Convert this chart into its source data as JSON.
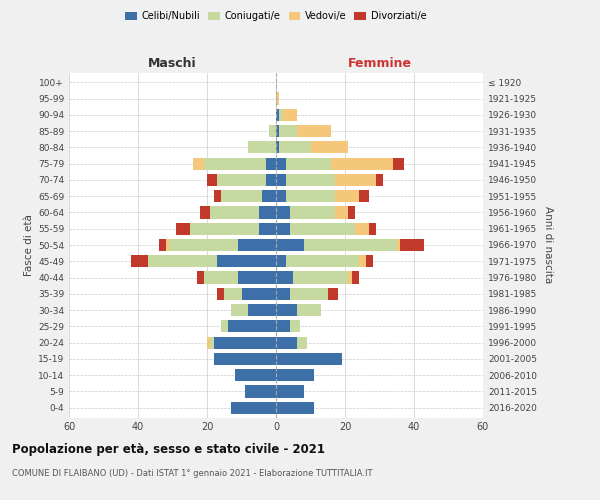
{
  "age_groups": [
    "0-4",
    "5-9",
    "10-14",
    "15-19",
    "20-24",
    "25-29",
    "30-34",
    "35-39",
    "40-44",
    "45-49",
    "50-54",
    "55-59",
    "60-64",
    "65-69",
    "70-74",
    "75-79",
    "80-84",
    "85-89",
    "90-94",
    "95-99",
    "100+"
  ],
  "birth_years": [
    "2016-2020",
    "2011-2015",
    "2006-2010",
    "2001-2005",
    "1996-2000",
    "1991-1995",
    "1986-1990",
    "1981-1985",
    "1976-1980",
    "1971-1975",
    "1966-1970",
    "1961-1965",
    "1956-1960",
    "1951-1955",
    "1946-1950",
    "1941-1945",
    "1936-1940",
    "1931-1935",
    "1926-1930",
    "1921-1925",
    "≤ 1920"
  ],
  "maschi": {
    "celibi": [
      13,
      9,
      12,
      18,
      18,
      14,
      8,
      10,
      11,
      17,
      11,
      5,
      5,
      4,
      3,
      3,
      0,
      0,
      0,
      0,
      0
    ],
    "coniugati": [
      0,
      0,
      0,
      0,
      1,
      2,
      5,
      5,
      10,
      20,
      20,
      20,
      14,
      12,
      14,
      18,
      8,
      2,
      0,
      0,
      0
    ],
    "vedovi": [
      0,
      0,
      0,
      0,
      1,
      0,
      0,
      0,
      0,
      0,
      1,
      0,
      0,
      0,
      0,
      3,
      0,
      0,
      0,
      0,
      0
    ],
    "divorziati": [
      0,
      0,
      0,
      0,
      0,
      0,
      0,
      2,
      2,
      5,
      2,
      4,
      3,
      2,
      3,
      0,
      0,
      0,
      0,
      0,
      0
    ]
  },
  "femmine": {
    "nubili": [
      11,
      8,
      11,
      19,
      6,
      4,
      6,
      4,
      5,
      3,
      8,
      4,
      4,
      3,
      3,
      3,
      1,
      1,
      1,
      0,
      0
    ],
    "coniugate": [
      0,
      0,
      0,
      0,
      3,
      3,
      7,
      11,
      16,
      21,
      27,
      19,
      13,
      14,
      14,
      13,
      9,
      5,
      1,
      0,
      0
    ],
    "vedove": [
      0,
      0,
      0,
      0,
      0,
      0,
      0,
      0,
      1,
      2,
      1,
      4,
      4,
      7,
      12,
      18,
      11,
      10,
      4,
      1,
      0
    ],
    "divorziate": [
      0,
      0,
      0,
      0,
      0,
      0,
      0,
      3,
      2,
      2,
      7,
      2,
      2,
      3,
      2,
      3,
      0,
      0,
      0,
      0,
      0
    ]
  },
  "colors": {
    "celibi": "#3d6fa8",
    "coniugati": "#c5d9a0",
    "vedovi": "#f5c77a",
    "divorziati": "#c0392b"
  },
  "xlim": 60,
  "title": "Popolazione per età, sesso e stato civile - 2021",
  "subtitle": "COMUNE DI FLAIBANO (UD) - Dati ISTAT 1° gennaio 2021 - Elaborazione TUTTITALIA.IT",
  "xlabel_left": "Maschi",
  "xlabel_right": "Femmine",
  "ylabel_left": "Fasce di età",
  "ylabel_right": "Anni di nascita",
  "legend_labels": [
    "Celibi/Nubili",
    "Coniugati/e",
    "Vedovi/e",
    "Divorziati/e"
  ],
  "bg_color": "#f0f0f0",
  "plot_bg": "#ffffff"
}
